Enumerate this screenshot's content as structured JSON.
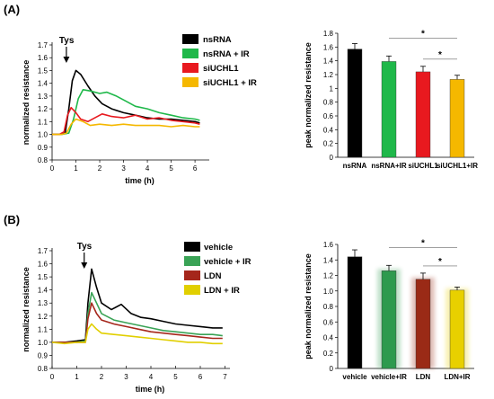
{
  "panels": [
    {
      "label": "(A)",
      "line": {
        "type": "line",
        "xlabel": "time (h)",
        "ylabel": "normalized resistance",
        "xlim": [
          0,
          6.6
        ],
        "ylim": [
          0.8,
          1.7
        ],
        "xticks": [
          0,
          1,
          2,
          3,
          4,
          5,
          6
        ],
        "yticks": [
          "0.8",
          "0.9",
          "1.0",
          "1.1",
          "1.2",
          "1.3",
          "1.4",
          "1.5",
          "1.6",
          "1.7"
        ],
        "annotation": "Tys",
        "annotation_x": 0.6,
        "series": [
          {
            "name": "nsRNA",
            "color": "#000000",
            "points": [
              [
                0,
                1.0
              ],
              [
                0.3,
                1.0
              ],
              [
                0.55,
                1.01
              ],
              [
                0.7,
                1.2
              ],
              [
                0.85,
                1.42
              ],
              [
                1.0,
                1.5
              ],
              [
                1.2,
                1.47
              ],
              [
                1.5,
                1.38
              ],
              [
                1.8,
                1.3
              ],
              [
                2.1,
                1.24
              ],
              [
                2.5,
                1.2
              ],
              [
                3.0,
                1.17
              ],
              [
                3.5,
                1.15
              ],
              [
                4.0,
                1.13
              ],
              [
                4.5,
                1.12
              ],
              [
                5.0,
                1.12
              ],
              [
                5.5,
                1.11
              ],
              [
                6.0,
                1.1
              ],
              [
                6.2,
                1.09
              ]
            ]
          },
          {
            "name": "nsRNA + IR",
            "color": "#1fb84a",
            "points": [
              [
                0,
                1.0
              ],
              [
                0.4,
                1.0
              ],
              [
                0.7,
                1.01
              ],
              [
                0.9,
                1.12
              ],
              [
                1.1,
                1.28
              ],
              [
                1.3,
                1.35
              ],
              [
                1.6,
                1.34
              ],
              [
                2.0,
                1.32
              ],
              [
                2.3,
                1.33
              ],
              [
                2.7,
                1.3
              ],
              [
                3.1,
                1.26
              ],
              [
                3.5,
                1.22
              ],
              [
                4.0,
                1.2
              ],
              [
                4.5,
                1.17
              ],
              [
                5.0,
                1.15
              ],
              [
                5.5,
                1.13
              ],
              [
                6.0,
                1.12
              ],
              [
                6.2,
                1.11
              ]
            ]
          },
          {
            "name": "siUCHL1",
            "color": "#e8191f",
            "points": [
              [
                0,
                1.0
              ],
              [
                0.3,
                1.0
              ],
              [
                0.5,
                1.02
              ],
              [
                0.65,
                1.15
              ],
              [
                0.8,
                1.21
              ],
              [
                1.0,
                1.17
              ],
              [
                1.2,
                1.12
              ],
              [
                1.5,
                1.1
              ],
              [
                1.8,
                1.13
              ],
              [
                2.1,
                1.16
              ],
              [
                2.5,
                1.14
              ],
              [
                3.0,
                1.13
              ],
              [
                3.5,
                1.15
              ],
              [
                4.0,
                1.12
              ],
              [
                4.5,
                1.13
              ],
              [
                5.0,
                1.11
              ],
              [
                5.5,
                1.1
              ],
              [
                6.0,
                1.09
              ],
              [
                6.2,
                1.08
              ]
            ]
          },
          {
            "name": "siUCHL1 + IR",
            "color": "#f5b800",
            "points": [
              [
                0,
                1.0
              ],
              [
                0.4,
                1.0
              ],
              [
                0.6,
                1.01
              ],
              [
                0.8,
                1.08
              ],
              [
                1.0,
                1.12
              ],
              [
                1.3,
                1.1
              ],
              [
                1.6,
                1.07
              ],
              [
                2.0,
                1.08
              ],
              [
                2.5,
                1.07
              ],
              [
                3.0,
                1.08
              ],
              [
                3.5,
                1.07
              ],
              [
                4.0,
                1.07
              ],
              [
                4.5,
                1.07
              ],
              [
                5.0,
                1.06
              ],
              [
                5.5,
                1.07
              ],
              [
                6.0,
                1.06
              ],
              [
                6.2,
                1.06
              ]
            ]
          }
        ]
      },
      "bar": {
        "type": "bar",
        "ylabel": "peak normalized resistance",
        "ylim": [
          0,
          1.8
        ],
        "yticks": [
          "0",
          "0.2",
          "0.4",
          "0.6",
          "0.8",
          "1",
          "1.2",
          "1.4",
          "1.6",
          "1.8"
        ],
        "categories": [
          "nsRNA",
          "nsRNA+IR",
          "siUCHL1",
          "siUCHL1+IR"
        ],
        "values": [
          1.57,
          1.39,
          1.24,
          1.13
        ],
        "errors": [
          0.08,
          0.08,
          0.08,
          0.06
        ],
        "colors": [
          "#000000",
          "#1fb84a",
          "#e8191f",
          "#f5b800"
        ],
        "glow": false,
        "significance": [
          {
            "from": 1,
            "to": 3,
            "label": "*"
          },
          {
            "from": 2,
            "to": 3,
            "label": "*"
          }
        ]
      }
    },
    {
      "label": "(B)",
      "line": {
        "type": "line",
        "xlabel": "time (h)",
        "ylabel": "normalized resistance",
        "xlim": [
          0,
          7.2
        ],
        "ylim": [
          0.8,
          1.7
        ],
        "xticks": [
          0,
          1,
          2,
          3,
          4,
          5,
          6,
          7
        ],
        "yticks": [
          "0.8",
          "0.9",
          "1.0",
          "1.1",
          "1.2",
          "1.3",
          "1.4",
          "1.5",
          "1.6",
          "1.7"
        ],
        "annotation": "Tys",
        "annotation_x": 1.3,
        "series": [
          {
            "name": "vehicle",
            "color": "#000000",
            "points": [
              [
                0,
                1.0
              ],
              [
                0.5,
                1.0
              ],
              [
                1.0,
                1.01
              ],
              [
                1.35,
                1.02
              ],
              [
                1.45,
                1.3
              ],
              [
                1.6,
                1.56
              ],
              [
                1.8,
                1.42
              ],
              [
                2.0,
                1.3
              ],
              [
                2.4,
                1.25
              ],
              [
                2.8,
                1.29
              ],
              [
                3.2,
                1.22
              ],
              [
                3.6,
                1.19
              ],
              [
                4.0,
                1.18
              ],
              [
                4.5,
                1.16
              ],
              [
                5.0,
                1.14
              ],
              [
                5.5,
                1.13
              ],
              [
                6.0,
                1.12
              ],
              [
                6.5,
                1.11
              ],
              [
                6.9,
                1.11
              ]
            ]
          },
          {
            "name": "vehicle + IR",
            "color": "#3aa356",
            "points": [
              [
                0,
                1.0
              ],
              [
                0.5,
                1.0
              ],
              [
                1.0,
                1.0
              ],
              [
                1.35,
                1.01
              ],
              [
                1.45,
                1.22
              ],
              [
                1.6,
                1.38
              ],
              [
                1.8,
                1.3
              ],
              [
                2.0,
                1.22
              ],
              [
                2.5,
                1.17
              ],
              [
                3.0,
                1.15
              ],
              [
                3.5,
                1.13
              ],
              [
                4.0,
                1.11
              ],
              [
                4.5,
                1.09
              ],
              [
                5.0,
                1.08
              ],
              [
                5.5,
                1.07
              ],
              [
                6.0,
                1.06
              ],
              [
                6.5,
                1.06
              ],
              [
                6.9,
                1.05
              ]
            ]
          },
          {
            "name": "LDN",
            "color": "#a5261b",
            "points": [
              [
                0,
                1.0
              ],
              [
                0.5,
                1.0
              ],
              [
                1.0,
                1.0
              ],
              [
                1.35,
                1.0
              ],
              [
                1.45,
                1.18
              ],
              [
                1.6,
                1.3
              ],
              [
                1.8,
                1.22
              ],
              [
                2.0,
                1.17
              ],
              [
                2.5,
                1.14
              ],
              [
                3.0,
                1.12
              ],
              [
                3.5,
                1.1
              ],
              [
                4.0,
                1.08
              ],
              [
                4.5,
                1.07
              ],
              [
                5.0,
                1.06
              ],
              [
                5.5,
                1.05
              ],
              [
                6.0,
                1.04
              ],
              [
                6.5,
                1.03
              ],
              [
                6.9,
                1.03
              ]
            ]
          },
          {
            "name": "LDN + IR",
            "color": "#e1cf00",
            "points": [
              [
                0,
                1.0
              ],
              [
                0.5,
                0.99
              ],
              [
                1.0,
                1.0
              ],
              [
                1.35,
                1.0
              ],
              [
                1.45,
                1.1
              ],
              [
                1.6,
                1.14
              ],
              [
                1.8,
                1.1
              ],
              [
                2.0,
                1.07
              ],
              [
                2.5,
                1.06
              ],
              [
                3.0,
                1.05
              ],
              [
                3.5,
                1.04
              ],
              [
                4.0,
                1.03
              ],
              [
                4.5,
                1.02
              ],
              [
                5.0,
                1.01
              ],
              [
                5.5,
                1.0
              ],
              [
                6.0,
                1.0
              ],
              [
                6.5,
                0.99
              ],
              [
                6.9,
                0.99
              ]
            ]
          }
        ]
      },
      "bar": {
        "type": "bar",
        "ylabel": "peak normalized resistance",
        "ylim": [
          0,
          1.6
        ],
        "yticks": [
          "0",
          "0.2",
          "0.4",
          "0.6",
          "0.8",
          "1.0",
          "1.2",
          "1.4",
          "1.6"
        ],
        "categories": [
          "vehicle",
          "vehicle+IR",
          "LDN",
          "LDN+IR"
        ],
        "values": [
          1.44,
          1.26,
          1.15,
          1.01
        ],
        "errors": [
          0.09,
          0.07,
          0.08,
          0.04
        ],
        "colors": [
          "#000000",
          "#2e9a4e",
          "#9a2a16",
          "#e8d000"
        ],
        "glow": true,
        "significance": [
          {
            "from": 1,
            "to": 3,
            "label": "*"
          },
          {
            "from": 2,
            "to": 3,
            "label": "*"
          }
        ]
      }
    }
  ]
}
